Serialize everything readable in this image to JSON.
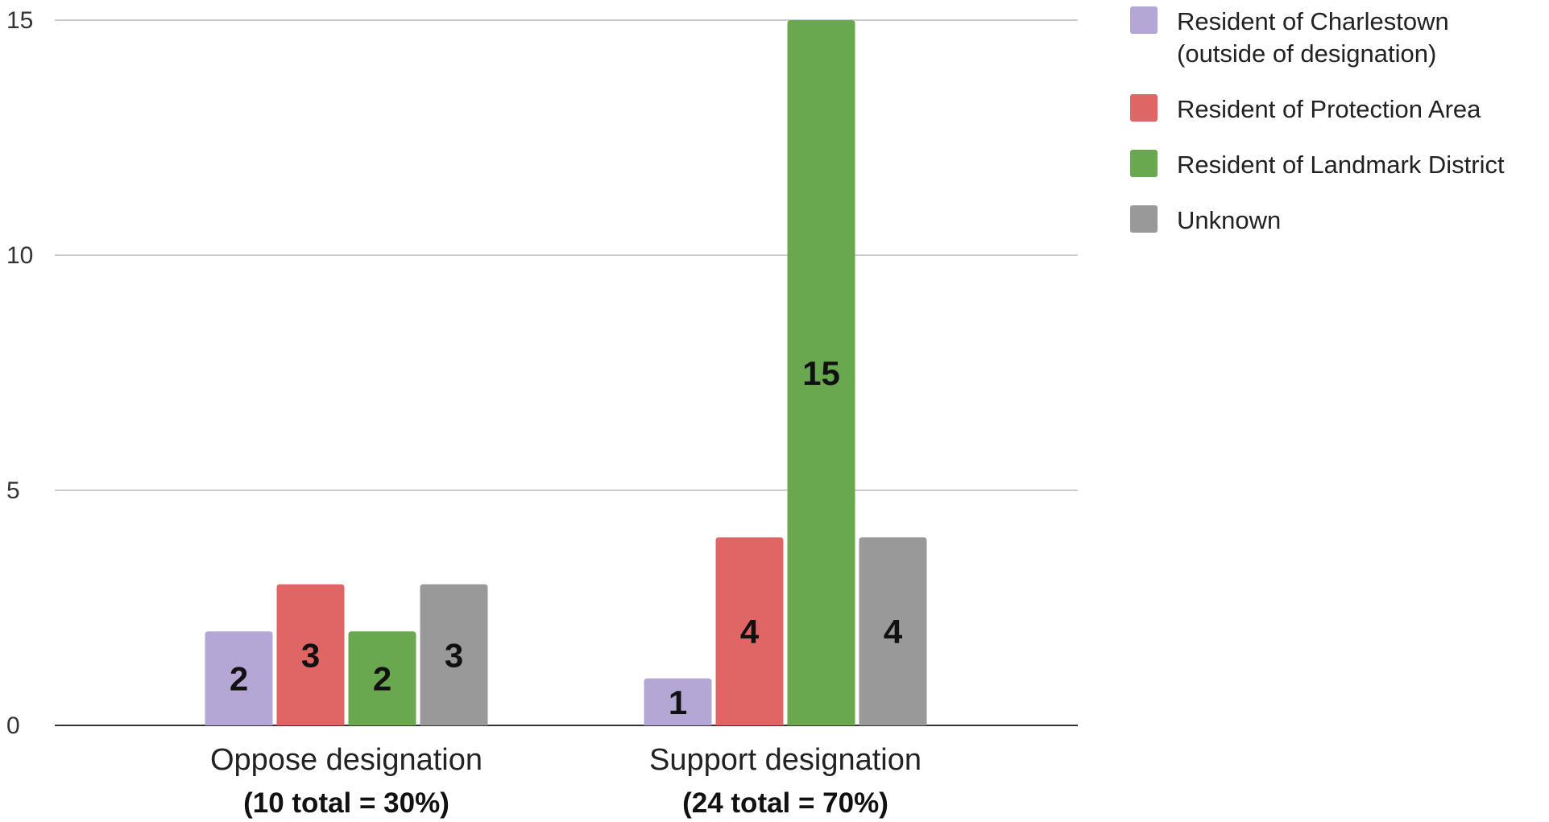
{
  "chart_data": {
    "type": "bar",
    "categories": [
      "Oppose designation",
      "Support designation"
    ],
    "category_sublabels": [
      "(10 total = 30%)",
      "(24 total = 70%)"
    ],
    "series": [
      {
        "name": "Resident of Charlestown (outside of designation)",
        "name_lines": [
          "Resident of Charlestown",
          "(outside of designation)"
        ],
        "color": "#b4a7d6",
        "values": [
          2,
          1
        ]
      },
      {
        "name": "Resident of Protection Area",
        "name_lines": [
          "Resident of Protection Area"
        ],
        "color": "#e06666",
        "values": [
          3,
          4
        ]
      },
      {
        "name": "Resident of Landmark District",
        "name_lines": [
          "Resident of Landmark District"
        ],
        "color": "#6aa84f",
        "values": [
          2,
          15
        ]
      },
      {
        "name": "Unknown",
        "name_lines": [
          "Unknown"
        ],
        "color": "#999999",
        "values": [
          3,
          4
        ]
      }
    ],
    "ylim": [
      0,
      15
    ],
    "yticks": [
      0,
      5,
      10,
      15
    ],
    "grid": true,
    "legend_position": "right",
    "data_labels": true,
    "xlabel": "",
    "ylabel": ""
  }
}
